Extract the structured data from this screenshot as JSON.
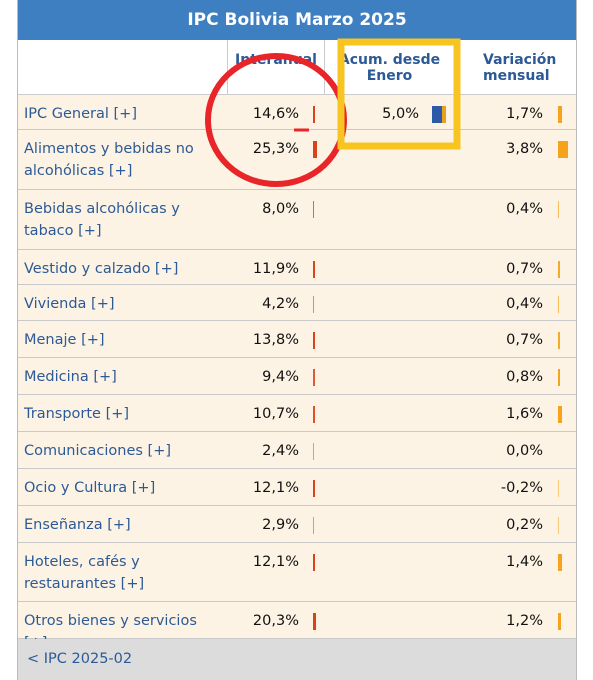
{
  "title": "IPC Bolivia Marzo 2025",
  "columns": [
    "Interanual",
    "Acum. desde Enero",
    "Variación mensual"
  ],
  "rows": [
    {
      "label": "IPC General [+]",
      "interanual": {
        "value": 14.6,
        "label": "14,6%"
      },
      "acumulado": {
        "value": 5.0,
        "label": "5,0%"
      },
      "mensual": {
        "value": 1.7,
        "label": "1,7%"
      }
    },
    {
      "label": "Alimentos y bebidas no alcohólicas [+]",
      "interanual": {
        "value": 25.3,
        "label": "25,3%"
      },
      "mensual": {
        "value": 3.8,
        "label": "3,8%"
      }
    },
    {
      "label": "Bebidas alcohólicas y tabaco [+]",
      "interanual": {
        "value": 8.0,
        "label": "8,0%"
      },
      "mensual": {
        "value": 0.4,
        "label": "0,4%"
      }
    },
    {
      "label": "Vestido y calzado [+]",
      "interanual": {
        "value": 11.9,
        "label": "11,9%"
      },
      "mensual": {
        "value": 0.7,
        "label": "0,7%"
      }
    },
    {
      "label": "Vivienda [+]",
      "interanual": {
        "value": 4.2,
        "label": "4,2%"
      },
      "mensual": {
        "value": 0.4,
        "label": "0,4%"
      }
    },
    {
      "label": "Menaje [+]",
      "interanual": {
        "value": 13.8,
        "label": "13,8%"
      },
      "mensual": {
        "value": 0.7,
        "label": "0,7%"
      }
    },
    {
      "label": "Medicina [+]",
      "interanual": {
        "value": 9.4,
        "label": "9,4%"
      },
      "mensual": {
        "value": 0.8,
        "label": "0,8%"
      }
    },
    {
      "label": "Transporte [+]",
      "interanual": {
        "value": 10.7,
        "label": "10,7%"
      },
      "mensual": {
        "value": 1.6,
        "label": "1,6%"
      }
    },
    {
      "label": "Comunicaciones [+]",
      "interanual": {
        "value": 2.4,
        "label": "2,4%"
      },
      "mensual": {
        "value": 0,
        "label": "0,0%"
      }
    },
    {
      "label": "Ocio y Cultura [+]",
      "interanual": {
        "value": 12.1,
        "label": "12,1%"
      },
      "mensual": {
        "value": -0.2,
        "label": "-0,2%"
      }
    },
    {
      "label": "Enseñanza [+]",
      "interanual": {
        "value": 2.9,
        "label": "2,9%"
      },
      "mensual": {
        "value": 0.2,
        "label": "0,2%"
      }
    },
    {
      "label": "Hoteles, cafés y restaurantes [+]",
      "interanual": {
        "value": 12.1,
        "label": "12,1%"
      },
      "mensual": {
        "value": 1.4,
        "label": "1,4%"
      }
    },
    {
      "label": "Otros bienes y servicios [+]",
      "interanual": {
        "value": 20.3,
        "label": "20,3%"
      },
      "mensual": {
        "value": 1.2,
        "label": "1,2%"
      }
    }
  ],
  "footer": "< IPC 2025-02"
}
